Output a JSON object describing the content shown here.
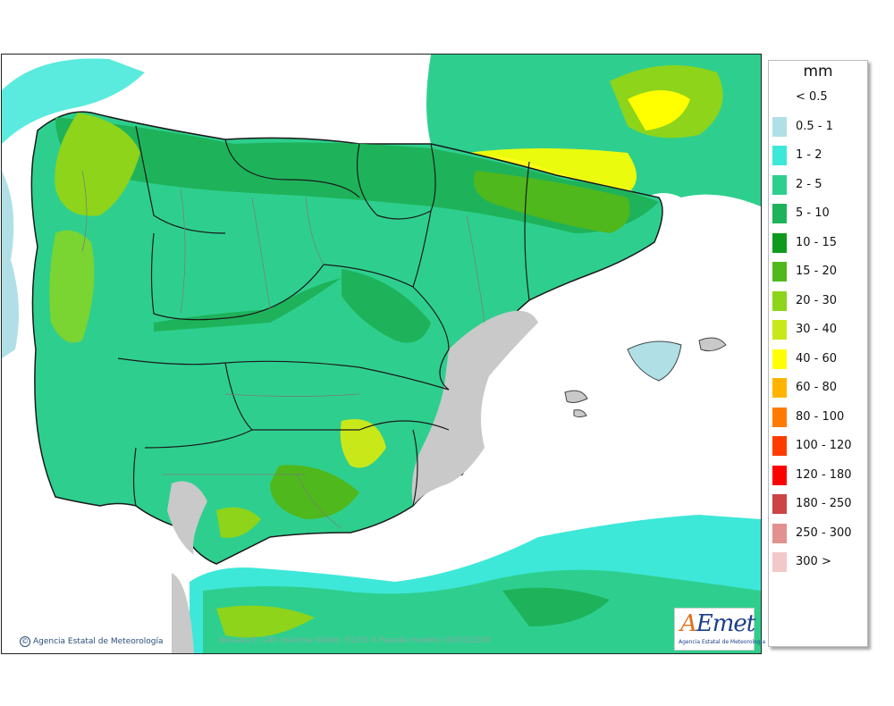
{
  "map": {
    "credit": "Agencia Estatal de Meteorología",
    "validity": "Nevada E. 24h máxima  Válido: 01/03  4 Pasada modelo: 00/03/2200",
    "logo": {
      "brand": "AEmet",
      "subtitle": "Agencia Estatal de Meteorología"
    },
    "colors": {
      "sea": "#ffffff",
      "dry_land": "#c9c9c9",
      "borders": "#1a1a1a",
      "provinces": "#7a7a7a"
    }
  },
  "legend": {
    "unit": "mm",
    "classes": [
      {
        "label": "< 0.5",
        "color": "#ffffff"
      },
      {
        "label": "0.5 - 1",
        "color": "#b0e0e6"
      },
      {
        "label": "1 - 2",
        "color": "#3de8d8"
      },
      {
        "label": "2 - 5",
        "color": "#2ecf8e"
      },
      {
        "label": "5 - 10",
        "color": "#1eb35a"
      },
      {
        "label": "10 - 15",
        "color": "#0f9a1e"
      },
      {
        "label": "15 - 20",
        "color": "#4fb81c"
      },
      {
        "label": "20 - 30",
        "color": "#8dd41a"
      },
      {
        "label": "30 - 40",
        "color": "#c9e81a"
      },
      {
        "label": "40 - 60",
        "color": "#ffff00"
      },
      {
        "label": "60 - 80",
        "color": "#ffb400"
      },
      {
        "label": "80 - 100",
        "color": "#ff7a00"
      },
      {
        "label": "100 - 120",
        "color": "#ff3c00"
      },
      {
        "label": "120 - 180",
        "color": "#ff0000"
      },
      {
        "label": "180 - 250",
        "color": "#cc4444"
      },
      {
        "label": "250 - 300",
        "color": "#e29090"
      },
      {
        "label": "300 >",
        "color": "#f2c8c8"
      }
    ]
  }
}
